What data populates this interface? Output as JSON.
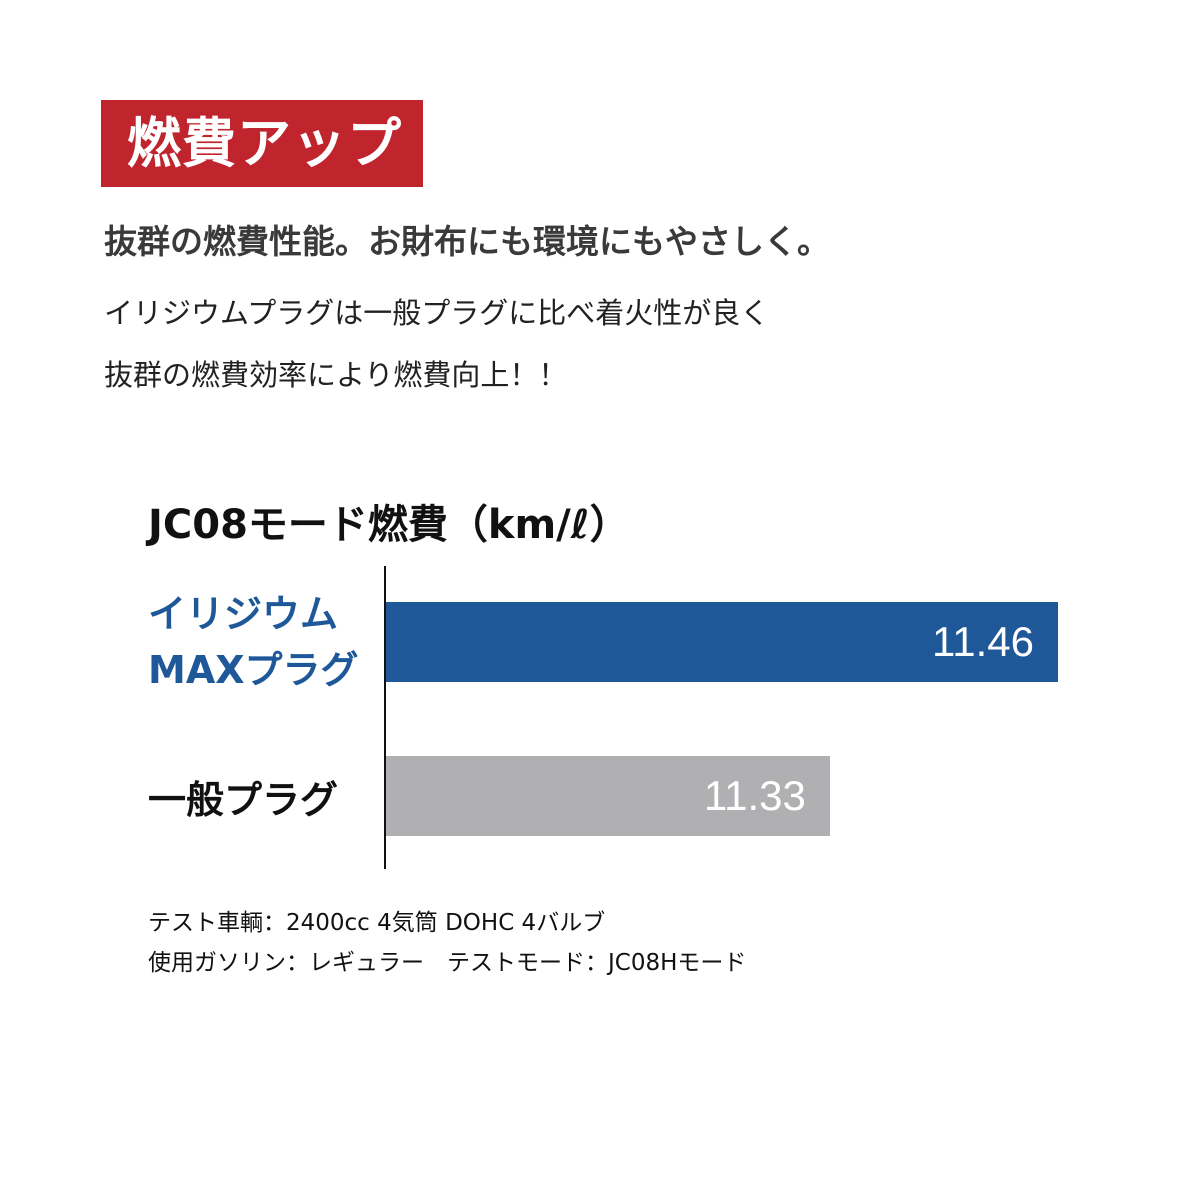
{
  "badge": "燃費アップ",
  "headline": "抜群の燃費性能。お財布にも環境にもやさしく。",
  "body": [
    "イリジウムプラグは一般プラグに比べ着火性が良く",
    "抜群の燃費効率により燃費向上！！"
  ],
  "chart_data": {
    "type": "bar",
    "orientation": "horizontal",
    "title": "JC08モード燃費（km/ℓ）",
    "categories": [
      "イリジウムMAXプラグ",
      "一般プラグ"
    ],
    "category_lines": [
      [
        "イリジウム",
        "MAXプラグ"
      ],
      [
        "一般プラグ"
      ]
    ],
    "values": [
      11.46,
      11.33
    ],
    "value_labels": [
      "11.46",
      "11.33"
    ],
    "colors": [
      "#1f5899",
      "#b0b0b2"
    ],
    "label_colors": [
      "#1f5899",
      "#111111"
    ],
    "grid": false
  },
  "notes": [
    "テスト車輌：2400cc 4気筒 DOHC 4バルブ",
    "使用ガソリン：レギュラー　テストモード：JC08Hモード"
  ],
  "colors": {
    "badge": "#c0252e"
  }
}
